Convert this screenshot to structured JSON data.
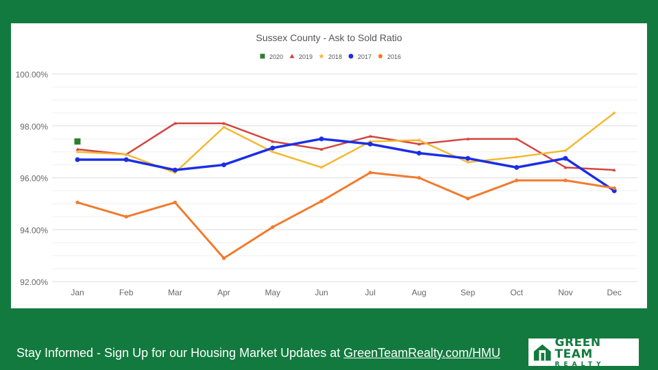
{
  "chart_data": {
    "type": "line",
    "title": "Sussex County - Ask to Sold Ratio",
    "categories": [
      "Jan",
      "Feb",
      "Mar",
      "Apr",
      "May",
      "Jun",
      "Jul",
      "Aug",
      "Sep",
      "Oct",
      "Nov",
      "Dec"
    ],
    "ylim": [
      92,
      100
    ],
    "yticks": [
      92,
      94,
      96,
      98,
      100
    ],
    "ytick_labels": [
      "92.00%",
      "94.00%",
      "96.00%",
      "98.00%",
      "100.00%"
    ],
    "grid": true,
    "legend_position": "top",
    "series": [
      {
        "name": "2020",
        "color": "#2e7d32",
        "marker": "square",
        "values": [
          97.4,
          null,
          null,
          null,
          null,
          null,
          null,
          null,
          null,
          null,
          null,
          null
        ]
      },
      {
        "name": "2019",
        "color": "#d0463f",
        "marker": "triangle",
        "values": [
          97.1,
          96.9,
          98.1,
          98.1,
          97.4,
          97.1,
          97.6,
          97.3,
          97.5,
          97.5,
          96.4,
          96.3
        ]
      },
      {
        "name": "2018",
        "color": "#f4b830",
        "marker": "star",
        "values": [
          97.0,
          96.9,
          96.2,
          97.95,
          97.0,
          96.4,
          97.4,
          97.45,
          96.6,
          96.8,
          97.05,
          98.5
        ]
      },
      {
        "name": "2017",
        "color": "#1a2ee6",
        "marker": "circle",
        "values": [
          96.7,
          96.7,
          96.3,
          96.5,
          97.15,
          97.5,
          97.3,
          96.95,
          96.75,
          96.4,
          96.75,
          95.5
        ]
      },
      {
        "name": "2016",
        "color": "#f27a2c",
        "marker": "pentagon",
        "values": [
          95.05,
          94.5,
          95.05,
          92.9,
          94.1,
          95.1,
          96.2,
          96.0,
          95.2,
          95.9,
          95.9,
          95.6
        ]
      }
    ]
  },
  "footer": {
    "text": "Stay Informed - Sign Up for our Housing Market Updates at ",
    "link": "GreenTeamRealty.com/HMU"
  },
  "logo": {
    "line1": "GREEN TEAM",
    "line2": "REALTY"
  }
}
